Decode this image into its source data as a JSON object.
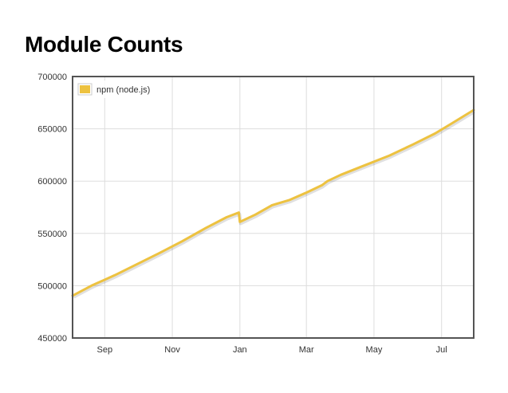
{
  "page": {
    "title": "Module Counts"
  },
  "colors": {
    "series": "#edc240",
    "grid": "#dddddd",
    "axis": "#545454",
    "text": "#333333"
  },
  "chart_data": {
    "type": "line",
    "title": "Module Counts",
    "xlabel": "",
    "ylabel": "",
    "x_type": "date",
    "xlim": [
      "2015-08-03",
      "2016-07-30"
    ],
    "ylim": [
      450000,
      700000
    ],
    "y_ticks": [
      450000,
      500000,
      550000,
      600000,
      650000,
      700000
    ],
    "y_tick_labels": [
      "450000",
      "500000",
      "550000",
      "600000",
      "650000",
      "700000"
    ],
    "x_ticks": [
      "2015-09-01",
      "2015-11-01",
      "2016-01-01",
      "2016-03-01",
      "2016-05-01",
      "2016-07-01"
    ],
    "x_tick_labels": [
      "Sep",
      "Nov",
      "Jan",
      "Mar",
      "May",
      "Jul"
    ],
    "grid": true,
    "legend_position": "top-left",
    "series": [
      {
        "name": "npm (node.js)",
        "color": "#edc240",
        "points": [
          [
            "2015-08-03",
            490500
          ],
          [
            "2015-08-20",
            500000
          ],
          [
            "2015-09-10",
            510000
          ],
          [
            "2015-10-01",
            521000
          ],
          [
            "2015-10-20",
            531000
          ],
          [
            "2015-11-10",
            542500
          ],
          [
            "2015-12-01",
            555000
          ],
          [
            "2015-12-20",
            565500
          ],
          [
            "2015-12-31",
            570000
          ],
          [
            "2016-01-01",
            561000
          ],
          [
            "2016-01-15",
            568000
          ],
          [
            "2016-01-30",
            577000
          ],
          [
            "2016-02-15",
            582000
          ],
          [
            "2016-03-01",
            589000
          ],
          [
            "2016-03-15",
            596000
          ],
          [
            "2016-03-20",
            600000
          ],
          [
            "2016-04-01",
            606000
          ],
          [
            "2016-04-20",
            614000
          ],
          [
            "2016-05-15",
            624500
          ],
          [
            "2016-06-05",
            635000
          ],
          [
            "2016-06-25",
            645500
          ],
          [
            "2016-07-10",
            655000
          ],
          [
            "2016-07-30",
            668000
          ]
        ]
      }
    ]
  }
}
